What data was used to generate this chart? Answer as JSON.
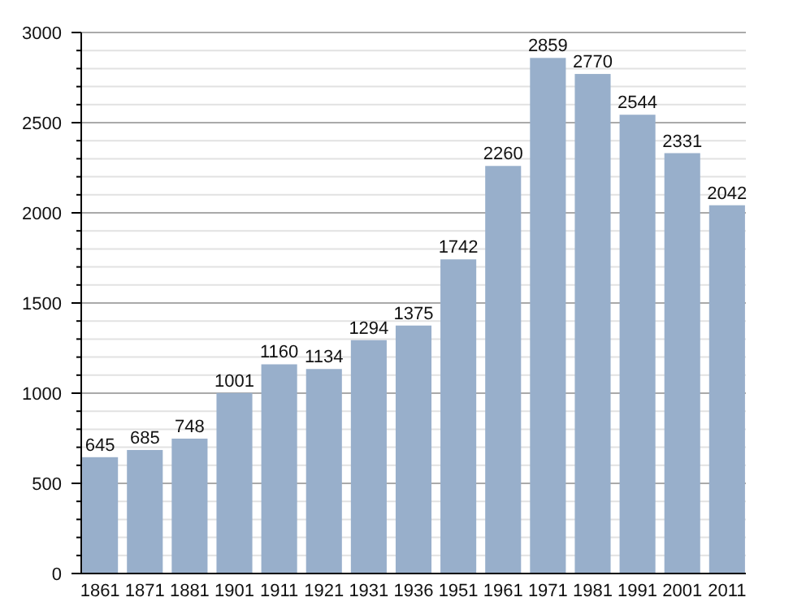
{
  "chart_data": {
    "type": "bar",
    "categories": [
      "1861",
      "1871",
      "1881",
      "1901",
      "1911",
      "1921",
      "1931",
      "1936",
      "1951",
      "1961",
      "1971",
      "1981",
      "1991",
      "2001",
      "2011"
    ],
    "values": [
      645,
      685,
      748,
      1001,
      1160,
      1134,
      1294,
      1375,
      1742,
      2260,
      2859,
      2770,
      2544,
      2331,
      2042
    ],
    "color": "#98afcb",
    "data_labels": true,
    "grid": true,
    "ylim": [
      0,
      3000
    ],
    "yticks": [
      0,
      {
        "value": 100,
        "label": null
      },
      {
        "value": 200,
        "label": null
      },
      {
        "value": 300,
        "label": null
      },
      {
        "value": 400,
        "label": null
      },
      500,
      {
        "value": 600,
        "label": null
      },
      {
        "value": 700,
        "label": null
      },
      {
        "value": 800,
        "label": null
      },
      {
        "value": 900,
        "label": null
      },
      1000,
      {
        "value": 1100,
        "label": null
      },
      {
        "value": 1200,
        "label": null
      },
      {
        "value": 1300,
        "label": null
      },
      {
        "value": 1400,
        "label": null
      },
      1500,
      {
        "value": 1600,
        "label": null
      },
      {
        "value": 1700,
        "label": null
      },
      {
        "value": 1800,
        "label": null
      },
      {
        "value": 1900,
        "label": null
      },
      2000,
      {
        "value": 2100,
        "label": null
      },
      {
        "value": 2200,
        "label": null
      },
      {
        "value": 2300,
        "label": null
      },
      {
        "value": 2400,
        "label": null
      },
      2500,
      {
        "value": 2600,
        "label": null
      },
      {
        "value": 2700,
        "label": null
      },
      {
        "value": 2800,
        "label": null
      },
      {
        "value": 2900,
        "label": null
      },
      3000
    ]
  }
}
